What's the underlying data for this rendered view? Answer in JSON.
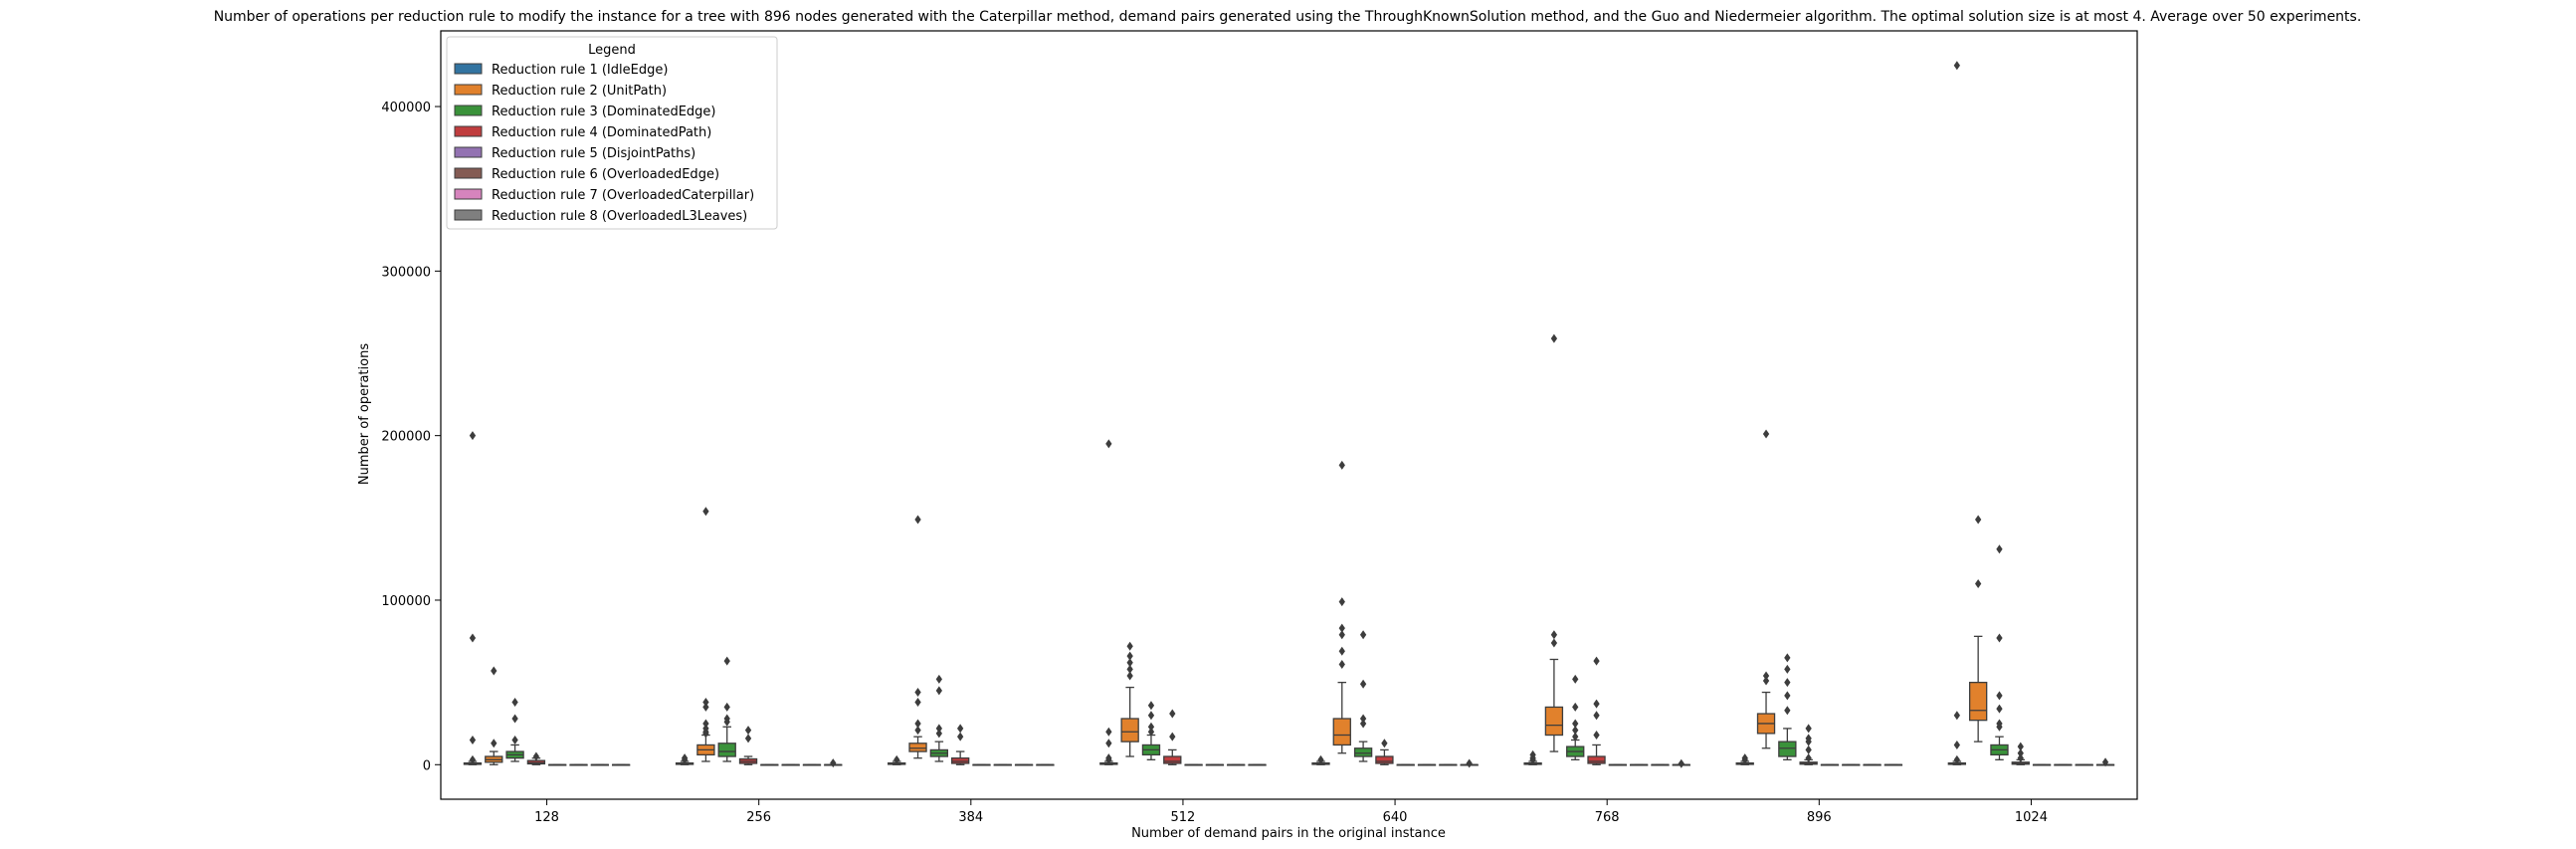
{
  "chart_data": {
    "type": "box",
    "title": "Number of operations per reduction rule to modify the instance for a tree with 896 nodes generated with the Caterpillar method, demand pairs generated using the ThroughKnownSolution method, and the Guo and Niedermeier algorithm. The optimal solution size is at most 4. Average over 50 experiments.",
    "xlabel": "Number of demand pairs in the original instance",
    "ylabel": "Number of operations",
    "categories": [
      "128",
      "256",
      "384",
      "512",
      "640",
      "768",
      "896",
      "1024"
    ],
    "yticks": [
      0,
      100000,
      200000,
      300000,
      400000
    ],
    "ytick_labels": [
      "0",
      "100000",
      "200000",
      "300000",
      "400000"
    ],
    "ylim": [
      -21000,
      446000
    ],
    "legend": {
      "title": "Legend",
      "placement": "top-left",
      "entries": [
        "Reduction rule 1 (IdleEdge)",
        "Reduction rule 2 (UnitPath)",
        "Reduction rule 3 (DominatedEdge)",
        "Reduction rule 4 (DominatedPath)",
        "Reduction rule 5 (DisjointPaths)",
        "Reduction rule 6 (OverloadedEdge)",
        "Reduction rule 7 (OverloadedCaterpillar)",
        "Reduction rule 8 (OverloadedL3Leaves)"
      ]
    },
    "colors": [
      "#3274a1",
      "#e1812c",
      "#3a923a",
      "#c03d3e",
      "#9372b2",
      "#845b53",
      "#d684bd",
      "#7f7f7f"
    ],
    "series": [
      {
        "name": "Reduction rule 1 (IdleEdge)",
        "boxes": [
          {
            "min": 0,
            "q1": 200,
            "median": 500,
            "q3": 1000,
            "max": 2000,
            "outliers": [
              200000,
              77000,
              15000,
              3000
            ]
          },
          {
            "min": 0,
            "q1": 200,
            "median": 500,
            "q3": 1000,
            "max": 2000,
            "outliers": [
              4000,
              3000
            ]
          },
          {
            "min": 0,
            "q1": 200,
            "median": 500,
            "q3": 1000,
            "max": 2000,
            "outliers": [
              3000
            ]
          },
          {
            "min": 0,
            "q1": 200,
            "median": 500,
            "q3": 1000,
            "max": 2000,
            "outliers": [
              195000,
              20000,
              13000,
              4000,
              3000
            ]
          },
          {
            "min": 0,
            "q1": 200,
            "median": 500,
            "q3": 1000,
            "max": 2000,
            "outliers": [
              3000
            ]
          },
          {
            "min": 0,
            "q1": 200,
            "median": 500,
            "q3": 1000,
            "max": 2000,
            "outliers": [
              6000,
              4000,
              3000
            ]
          },
          {
            "min": 0,
            "q1": 200,
            "median": 500,
            "q3": 1000,
            "max": 2000,
            "outliers": [
              4000,
              3000
            ]
          },
          {
            "min": 0,
            "q1": 200,
            "median": 500,
            "q3": 1000,
            "max": 2000,
            "outliers": [
              425000,
              30000,
              12000,
              3000
            ]
          }
        ]
      },
      {
        "name": "Reduction rule 2 (UnitPath)",
        "boxes": [
          {
            "min": 0,
            "q1": 1500,
            "median": 3000,
            "q3": 5000,
            "max": 8000,
            "outliers": [
              57000,
              13000
            ]
          },
          {
            "min": 2000,
            "q1": 6000,
            "median": 9000,
            "q3": 12000,
            "max": 18000,
            "outliers": [
              154000,
              38000,
              35000,
              25000,
              22000,
              20000,
              19000
            ]
          },
          {
            "min": 4000,
            "q1": 8000,
            "median": 10000,
            "q3": 13000,
            "max": 17000,
            "outliers": [
              149000,
              44000,
              38000,
              25000,
              21000
            ]
          },
          {
            "min": 5000,
            "q1": 14000,
            "median": 20000,
            "q3": 28000,
            "max": 47000,
            "outliers": [
              72000,
              66000,
              62000,
              58000,
              54000
            ]
          },
          {
            "min": 7000,
            "q1": 12000,
            "median": 18000,
            "q3": 28000,
            "max": 50000,
            "outliers": [
              182000,
              99000,
              83000,
              79000,
              69000,
              61000
            ]
          },
          {
            "min": 8000,
            "q1": 18000,
            "median": 24000,
            "q3": 35000,
            "max": 64000,
            "outliers": [
              259000,
              79000,
              74000
            ]
          },
          {
            "min": 10000,
            "q1": 19000,
            "median": 25000,
            "q3": 31000,
            "max": 44000,
            "outliers": [
              201000,
              54000,
              51000
            ]
          },
          {
            "min": 14000,
            "q1": 27000,
            "median": 33000,
            "q3": 50000,
            "max": 78000,
            "outliers": [
              149000,
              110000
            ]
          }
        ]
      },
      {
        "name": "Reduction rule 3 (DominatedEdge)",
        "boxes": [
          {
            "min": 2000,
            "q1": 4000,
            "median": 6000,
            "q3": 8000,
            "max": 12000,
            "outliers": [
              38000,
              28000,
              15000
            ]
          },
          {
            "min": 2000,
            "q1": 5000,
            "median": 8000,
            "q3": 13000,
            "max": 23000,
            "outliers": [
              63000,
              35000,
              28000,
              26000
            ]
          },
          {
            "min": 2000,
            "q1": 5000,
            "median": 7000,
            "q3": 9000,
            "max": 14000,
            "outliers": [
              52000,
              45000,
              22000,
              19000
            ]
          },
          {
            "min": 3000,
            "q1": 6000,
            "median": 9000,
            "q3": 12000,
            "max": 18000,
            "outliers": [
              36000,
              30000,
              23000,
              20000
            ]
          },
          {
            "min": 2000,
            "q1": 5000,
            "median": 7000,
            "q3": 10000,
            "max": 14000,
            "outliers": [
              79000,
              49000,
              28000,
              25000
            ]
          },
          {
            "min": 3000,
            "q1": 5000,
            "median": 8000,
            "q3": 11000,
            "max": 15000,
            "outliers": [
              52000,
              35000,
              25000,
              21000,
              17000
            ]
          },
          {
            "min": 3000,
            "q1": 5000,
            "median": 10000,
            "q3": 14000,
            "max": 22000,
            "outliers": [
              65000,
              58000,
              50000,
              42000,
              33000
            ]
          },
          {
            "min": 3000,
            "q1": 6000,
            "median": 9000,
            "q3": 12000,
            "max": 17000,
            "outliers": [
              131000,
              77000,
              42000,
              34000,
              25000,
              23000
            ]
          }
        ]
      },
      {
        "name": "Reduction rule 4 (DominatedPath)",
        "boxes": [
          {
            "min": 0,
            "q1": 500,
            "median": 1200,
            "q3": 2500,
            "max": 4000,
            "outliers": [
              5000
            ]
          },
          {
            "min": 0,
            "q1": 800,
            "median": 2000,
            "q3": 3500,
            "max": 5000,
            "outliers": [
              21000,
              16000
            ]
          },
          {
            "min": 0,
            "q1": 800,
            "median": 2000,
            "q3": 4000,
            "max": 8000,
            "outliers": [
              22000,
              17000
            ]
          },
          {
            "min": 0,
            "q1": 800,
            "median": 2000,
            "q3": 5000,
            "max": 9000,
            "outliers": [
              31000,
              17000
            ]
          },
          {
            "min": 0,
            "q1": 800,
            "median": 2000,
            "q3": 5000,
            "max": 9000,
            "outliers": [
              13000
            ]
          },
          {
            "min": 0,
            "q1": 800,
            "median": 2000,
            "q3": 5000,
            "max": 12000,
            "outliers": [
              63000,
              37000,
              30000,
              18000
            ]
          },
          {
            "min": 0,
            "q1": 300,
            "median": 700,
            "q3": 1500,
            "max": 3000,
            "outliers": [
              22000,
              16000,
              14000,
              9000,
              4000
            ]
          },
          {
            "min": 0,
            "q1": 300,
            "median": 700,
            "q3": 1500,
            "max": 3000,
            "outliers": [
              11000,
              7000,
              4000
            ]
          }
        ]
      },
      {
        "name": "Reduction rule 5 (DisjointPaths)",
        "boxes": [
          {
            "min": 0,
            "q1": 0,
            "median": 0,
            "q3": 0,
            "max": 0,
            "outliers": []
          },
          {
            "min": 0,
            "q1": 0,
            "median": 0,
            "q3": 0,
            "max": 0,
            "outliers": []
          },
          {
            "min": 0,
            "q1": 0,
            "median": 0,
            "q3": 0,
            "max": 0,
            "outliers": []
          },
          {
            "min": 0,
            "q1": 0,
            "median": 0,
            "q3": 0,
            "max": 0,
            "outliers": []
          },
          {
            "min": 0,
            "q1": 0,
            "median": 0,
            "q3": 0,
            "max": 0,
            "outliers": []
          },
          {
            "min": 0,
            "q1": 0,
            "median": 0,
            "q3": 0,
            "max": 0,
            "outliers": []
          },
          {
            "min": 0,
            "q1": 0,
            "median": 0,
            "q3": 0,
            "max": 0,
            "outliers": []
          },
          {
            "min": 0,
            "q1": 0,
            "median": 0,
            "q3": 0,
            "max": 0,
            "outliers": []
          }
        ]
      },
      {
        "name": "Reduction rule 6 (OverloadedEdge)",
        "boxes": [
          {
            "min": 0,
            "q1": 0,
            "median": 0,
            "q3": 0,
            "max": 0,
            "outliers": []
          },
          {
            "min": 0,
            "q1": 0,
            "median": 0,
            "q3": 0,
            "max": 0,
            "outliers": []
          },
          {
            "min": 0,
            "q1": 0,
            "median": 0,
            "q3": 0,
            "max": 0,
            "outliers": []
          },
          {
            "min": 0,
            "q1": 0,
            "median": 0,
            "q3": 0,
            "max": 0,
            "outliers": []
          },
          {
            "min": 0,
            "q1": 0,
            "median": 0,
            "q3": 0,
            "max": 0,
            "outliers": []
          },
          {
            "min": 0,
            "q1": 0,
            "median": 0,
            "q3": 0,
            "max": 0,
            "outliers": []
          },
          {
            "min": 0,
            "q1": 0,
            "median": 0,
            "q3": 0,
            "max": 0,
            "outliers": []
          },
          {
            "min": 0,
            "q1": 0,
            "median": 0,
            "q3": 0,
            "max": 0,
            "outliers": []
          }
        ]
      },
      {
        "name": "Reduction rule 7 (OverloadedCaterpillar)",
        "boxes": [
          {
            "min": 0,
            "q1": 0,
            "median": 0,
            "q3": 0,
            "max": 0,
            "outliers": []
          },
          {
            "min": 0,
            "q1": 0,
            "median": 0,
            "q3": 0,
            "max": 0,
            "outliers": []
          },
          {
            "min": 0,
            "q1": 0,
            "median": 0,
            "q3": 0,
            "max": 0,
            "outliers": []
          },
          {
            "min": 0,
            "q1": 0,
            "median": 0,
            "q3": 0,
            "max": 0,
            "outliers": []
          },
          {
            "min": 0,
            "q1": 0,
            "median": 0,
            "q3": 0,
            "max": 0,
            "outliers": []
          },
          {
            "min": 0,
            "q1": 0,
            "median": 0,
            "q3": 0,
            "max": 0,
            "outliers": []
          },
          {
            "min": 0,
            "q1": 0,
            "median": 0,
            "q3": 0,
            "max": 0,
            "outliers": []
          },
          {
            "min": 0,
            "q1": 0,
            "median": 0,
            "q3": 0,
            "max": 0,
            "outliers": []
          }
        ]
      },
      {
        "name": "Reduction rule 8 (OverloadedL3Leaves)",
        "boxes": [
          {
            "min": 0,
            "q1": 0,
            "median": 0,
            "q3": 0,
            "max": 0,
            "outliers": []
          },
          {
            "min": 0,
            "q1": 0,
            "median": 0,
            "q3": 0,
            "max": 0,
            "outliers": [
              1000
            ]
          },
          {
            "min": 0,
            "q1": 0,
            "median": 0,
            "q3": 0,
            "max": 0,
            "outliers": []
          },
          {
            "min": 0,
            "q1": 0,
            "median": 0,
            "q3": 0,
            "max": 0,
            "outliers": []
          },
          {
            "min": 0,
            "q1": 0,
            "median": 0,
            "q3": 0,
            "max": 0,
            "outliers": [
              800
            ]
          },
          {
            "min": 0,
            "q1": 0,
            "median": 0,
            "q3": 0,
            "max": 0,
            "outliers": [
              600
            ]
          },
          {
            "min": 0,
            "q1": 0,
            "median": 0,
            "q3": 0,
            "max": 0,
            "outliers": []
          },
          {
            "min": 0,
            "q1": 0,
            "median": 0,
            "q3": 0,
            "max": 0,
            "outliers": [
              1500
            ]
          }
        ]
      }
    ]
  }
}
